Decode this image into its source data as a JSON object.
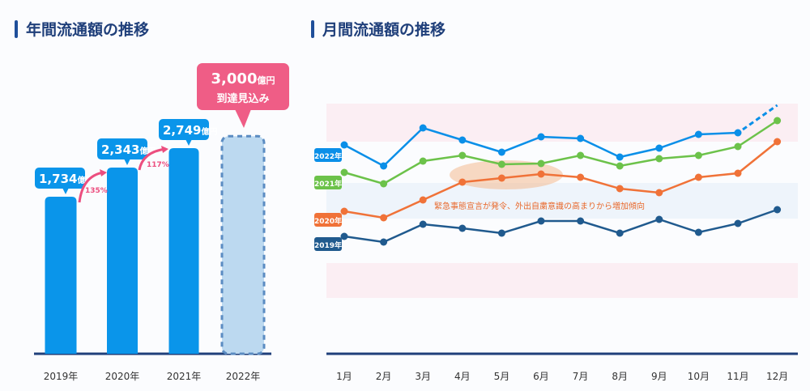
{
  "left_title": "年間流通額の推移",
  "right_title": "月間流通額の推移",
  "chart_data": [
    {
      "type": "bar",
      "title": "年間流通額の推移",
      "unit": "億円",
      "categories": [
        "2019年",
        "2020年",
        "2021年",
        "2022年"
      ],
      "values": [
        1734,
        2343,
        2749,
        3000
      ],
      "value_labels": [
        "1,734",
        "2,343",
        "2,749",
        "3,000"
      ],
      "projected": [
        false,
        false,
        false,
        true
      ],
      "growth_labels": [
        "135%",
        "117%"
      ],
      "callout": {
        "line1_value": "3,000",
        "line1_unit": "億円",
        "line2": "到達見込み"
      },
      "colors": {
        "bar": "#0a95ea",
        "projected": "#bcd9f0",
        "callout": "#ef5d86",
        "growth": "#ec4e7f",
        "axis": "#1f3f7a"
      }
    },
    {
      "type": "line",
      "title": "月間流通額の推移",
      "x": [
        "1月",
        "2月",
        "3月",
        "4月",
        "5月",
        "6月",
        "7月",
        "8月",
        "9月",
        "10月",
        "11月",
        "12月"
      ],
      "ylabel": "",
      "ylim": [
        0,
        200
      ],
      "note": "relative index (no y-axis shown)",
      "series": [
        {
          "name": "2022年",
          "color": "#0a8fe8",
          "values": [
            141,
            115,
            162,
            147,
            132,
            151,
            149,
            126,
            137,
            154,
            156,
            null
          ],
          "projection_end": 190
        },
        {
          "name": "2021年",
          "color": "#6cc24a",
          "values": [
            107,
            93,
            121,
            128,
            117,
            118,
            128,
            115,
            124,
            128,
            139,
            171
          ]
        },
        {
          "name": "2020年",
          "color": "#f07238",
          "values": [
            59,
            51,
            73,
            95,
            100,
            105,
            101,
            87,
            82,
            101,
            106,
            145
          ]
        },
        {
          "name": "2019年",
          "color": "#205a8e",
          "values": [
            28,
            21,
            43,
            38,
            32,
            47,
            47,
            32,
            49,
            33,
            44,
            61
          ]
        }
      ],
      "annotation": "緊急事態宣言が発令、外出自粛意識の高まりから増加傾向"
    }
  ]
}
